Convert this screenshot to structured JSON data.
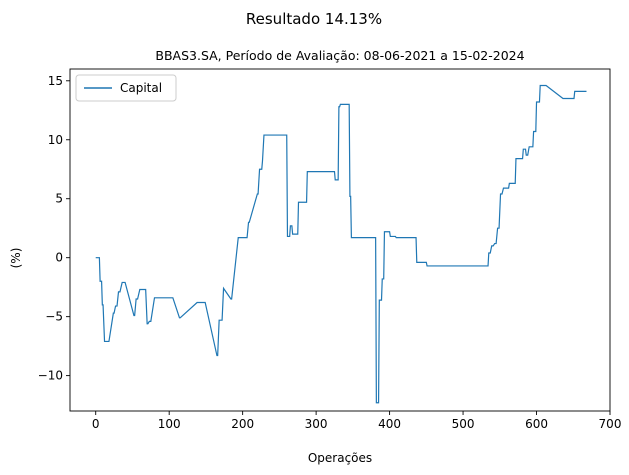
{
  "chart_data": {
    "type": "line",
    "title": "Resultado 14.13%",
    "subtitle": "BBAS3.SA, Período de Avaliação: 08-06-2021 a 15-02-2024",
    "xlabel": "Operações",
    "ylabel": "(%)",
    "xlim": [
      -35,
      700
    ],
    "ylim": [
      -13,
      16
    ],
    "xticks": [
      0,
      100,
      200,
      300,
      400,
      500,
      600,
      700
    ],
    "yticks": [
      -10,
      -5,
      0,
      5,
      10,
      15
    ],
    "xtick_labels": [
      "0",
      "100",
      "200",
      "300",
      "400",
      "500",
      "600",
      "700"
    ],
    "ytick_labels": [
      "−10",
      "−5",
      "0",
      "5",
      "10",
      "15"
    ],
    "grid": false,
    "legend_position": "top-left",
    "series": [
      {
        "name": "Capital",
        "color": "#1f77b4",
        "x": [
          0,
          5,
          6,
          8,
          9,
          10,
          12,
          14,
          18,
          24,
          25,
          27,
          29,
          31,
          33,
          36,
          38,
          40,
          52,
          53,
          55,
          57,
          60,
          68,
          70,
          71,
          73,
          75,
          80,
          104,
          105,
          114,
          115,
          138,
          139,
          148,
          149,
          165,
          166,
          168,
          169,
          171,
          172,
          174,
          184,
          185,
          194,
          195,
          204,
          206,
          208,
          209,
          220,
          221,
          223,
          226,
          227,
          229,
          260,
          261,
          264,
          265,
          267,
          268,
          275,
          276,
          287,
          288,
          325,
          326,
          330,
          331,
          332,
          333,
          334,
          345,
          346,
          347,
          348,
          349,
          381,
          382,
          385,
          386,
          389,
          390,
          392,
          393,
          400,
          401,
          408,
          409,
          436,
          437,
          450,
          451,
          534,
          535,
          537,
          539,
          541,
          543,
          545,
          547,
          549,
          551,
          553,
          555,
          562,
          563,
          571,
          572,
          581,
          582,
          585,
          586,
          588,
          590,
          595,
          596,
          599,
          600,
          604,
          605,
          611,
          613,
          636,
          637,
          651,
          652,
          660,
          661,
          668
        ],
        "y": [
          0,
          0,
          -2,
          -2,
          -4,
          -4,
          -7.1,
          -7.1,
          -7.1,
          -4.7,
          -4.7,
          -4.1,
          -4.1,
          -2.9,
          -2.9,
          -2.1,
          -2.1,
          -2.1,
          -4.9,
          -4.9,
          -3.5,
          -3.5,
          -2.7,
          -2.7,
          -5.6,
          -5.6,
          -5.4,
          -5.4,
          -3.4,
          -3.4,
          -3.4,
          -5.1,
          -5.1,
          -3.8,
          -3.8,
          -3.8,
          -3.8,
          -8.3,
          -8.3,
          -5.3,
          -5.3,
          -5.3,
          -5.3,
          -2.6,
          -3.5,
          -3.5,
          1.7,
          1.7,
          1.7,
          1.7,
          3.0,
          3.0,
          5.4,
          5.4,
          7.5,
          7.5,
          8.2,
          10.4,
          10.4,
          1.8,
          1.8,
          2.7,
          2.7,
          2.0,
          2.0,
          4.7,
          4.7,
          7.3,
          7.3,
          6.6,
          6.6,
          12.8,
          12.8,
          13.0,
          13.0,
          13.0,
          5.2,
          5.2,
          1.7,
          1.7,
          1.7,
          -12.3,
          -12.3,
          -3.6,
          -3.6,
          -1.8,
          -1.8,
          2.2,
          2.2,
          1.8,
          1.8,
          1.7,
          1.7,
          -0.4,
          -0.4,
          -0.7,
          -0.7,
          0.4,
          0.4,
          1.0,
          1.0,
          1.2,
          1.2,
          2.5,
          2.5,
          5.4,
          5.4,
          5.9,
          5.9,
          6.3,
          6.3,
          8.4,
          8.4,
          9.2,
          9.2,
          8.7,
          8.7,
          9.4,
          9.4,
          10.7,
          10.7,
          13.2,
          13.2,
          14.6,
          14.6,
          14.6,
          13.5,
          13.5,
          13.5,
          14.1,
          14.1,
          14.1,
          14.1
        ]
      }
    ]
  }
}
